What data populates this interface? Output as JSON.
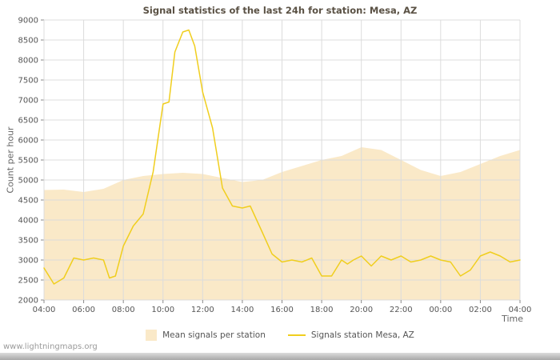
{
  "page": {
    "watermark": "www.lightningmaps.org"
  },
  "chart_data": {
    "type": "line",
    "title": "Signal statistics of the last 24h for station: Mesa, AZ",
    "xlabel": "Time",
    "ylabel": "Count per hour",
    "ylim": [
      2000,
      9000
    ],
    "ytick_step": 500,
    "xlim_hours": [
      0,
      24
    ],
    "x_tick_labels": [
      "04:00",
      "06:00",
      "08:00",
      "10:00",
      "12:00",
      "14:00",
      "16:00",
      "18:00",
      "20:00",
      "22:00",
      "00:00",
      "02:00",
      "04:00"
    ],
    "grid": true,
    "legend_position": "bottom",
    "colors": {
      "grid": "#dcdcdc",
      "tick": "#888888"
    },
    "series": [
      {
        "name": "Mean signals per station",
        "type": "area",
        "color": "#fae9c8",
        "x": [
          0,
          1,
          2,
          3,
          4,
          5,
          6,
          7,
          8,
          9,
          10,
          11,
          12,
          13,
          14,
          15,
          16,
          17,
          18,
          19,
          20,
          21,
          22,
          23,
          24
        ],
        "values": [
          4750,
          4760,
          4700,
          4780,
          5000,
          5100,
          5150,
          5180,
          5150,
          5050,
          4950,
          5000,
          5200,
          5350,
          5500,
          5600,
          5820,
          5750,
          5500,
          5250,
          5100,
          5200,
          5400,
          5600,
          5750
        ]
      },
      {
        "name": "Signals station Mesa, AZ",
        "type": "line",
        "color": "#f0ce1e",
        "x": [
          0,
          0.5,
          1,
          1.5,
          2,
          2.5,
          3,
          3.3,
          3.6,
          4,
          4.5,
          5,
          5.5,
          6,
          6.3,
          6.6,
          7,
          7.3,
          7.6,
          8,
          8.5,
          9,
          9.5,
          10,
          10.4,
          11,
          11.5,
          12,
          12.5,
          13,
          13.5,
          14,
          14.5,
          15,
          15.3,
          15.6,
          16,
          16.5,
          17,
          17.5,
          18,
          18.5,
          19,
          19.5,
          20,
          20.5,
          21,
          21.5,
          22,
          22.5,
          23,
          23.5,
          24
        ],
        "values": [
          2800,
          2400,
          2550,
          3050,
          3000,
          3050,
          3000,
          2550,
          2600,
          3350,
          3850,
          4150,
          5200,
          6900,
          6950,
          8200,
          8700,
          8750,
          8350,
          7200,
          6300,
          4800,
          4350,
          4300,
          4350,
          3700,
          3150,
          2950,
          3000,
          2950,
          3050,
          2600,
          2600,
          3000,
          2900,
          3000,
          3100,
          2850,
          3100,
          3000,
          3100,
          2950,
          3000,
          3100,
          3000,
          2950,
          2600,
          2750,
          3100,
          3200,
          3100,
          2950,
          3000
        ]
      }
    ]
  }
}
